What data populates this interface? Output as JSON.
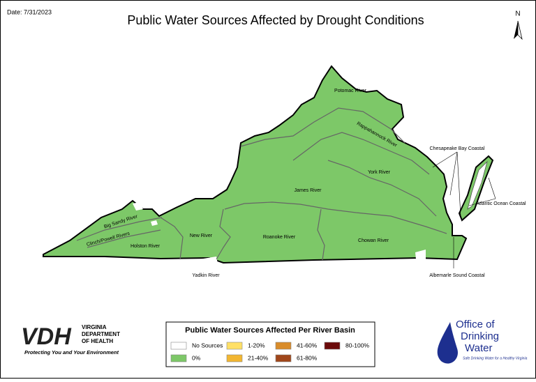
{
  "header": {
    "date": "Date: 7/31/2023",
    "title": "Public Water Sources Affected by Drought Conditions",
    "north": "N"
  },
  "basins": [
    {
      "label": "Potomac River"
    },
    {
      "label": "Rappahannock River"
    },
    {
      "label": "York River"
    },
    {
      "label": "James River"
    },
    {
      "label": "Big Sandy River"
    },
    {
      "label": "Clinch/Powell Rivers"
    },
    {
      "label": "Holston River"
    },
    {
      "label": "New River"
    },
    {
      "label": "Roanoke River"
    },
    {
      "label": "Chowan River"
    },
    {
      "label": "Yadkin River"
    },
    {
      "label": "Chesapeake Bay Coastal"
    },
    {
      "label": "Atlantic Ocean Coastal"
    },
    {
      "label": "Albemarle Sound Coastal"
    }
  ],
  "legend": {
    "title": "Public Water Sources Affected Per River Basin",
    "items": [
      {
        "label": "No Sources",
        "color": "#ffffff"
      },
      {
        "label": "1-20%",
        "color": "#ffe066"
      },
      {
        "label": "41-60%",
        "color": "#d98c2a"
      },
      {
        "label": "80-100%",
        "color": "#6b0a0a"
      },
      {
        "label": "0%",
        "color": "#7dc868"
      },
      {
        "label": "21-40%",
        "color": "#f2b631"
      },
      {
        "label": "61-80%",
        "color": "#a0461a"
      }
    ]
  },
  "logos": {
    "vdh": {
      "mark": "VDH",
      "line1": "VIRGINIA",
      "line2": "DEPARTMENT",
      "line3": "OF HEALTH",
      "tagline": "Protecting You and Your Environment"
    },
    "odw": {
      "line1": "Office of",
      "line2": "Drinking",
      "line3": "Water",
      "tagline": "Safe Drinking Water for a Healthy Virginia"
    }
  }
}
